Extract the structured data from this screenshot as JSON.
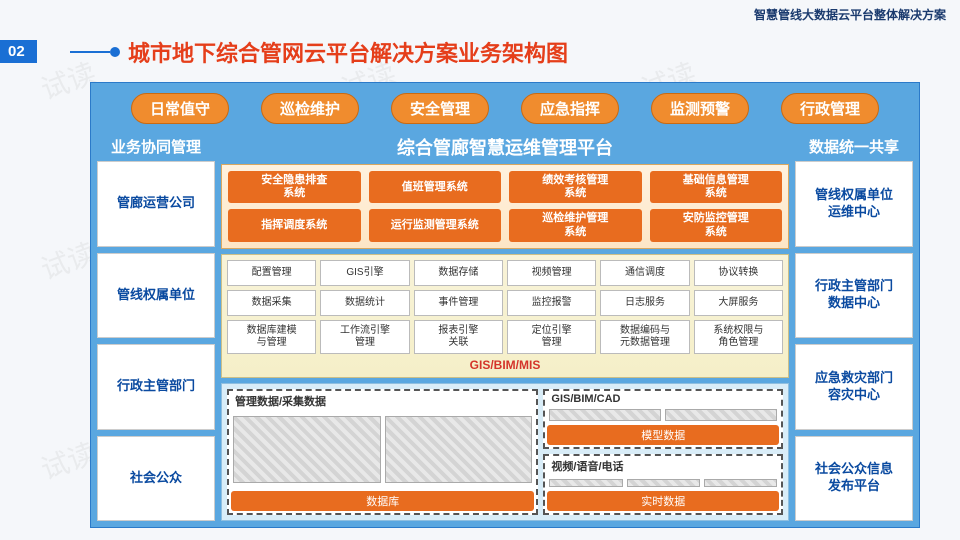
{
  "header": {
    "right_text": "智慧管线大数据云平台整体解决方案",
    "badge": "02",
    "title": "城市地下综合管网云平台解决方案业务架构图"
  },
  "colors": {
    "accent_blue": "#1a6fd4",
    "title_red": "#e53e1a",
    "pill_orange": "#f08c2e",
    "sys_orange": "#e86c1f",
    "diagram_bg": "#5aa7e0",
    "gis_red": "#d4342a"
  },
  "top_pills": [
    "日常值守",
    "巡检维护",
    "安全管理",
    "应急指挥",
    "监测预警",
    "行政管理"
  ],
  "left_col": {
    "header": "业务协同管理",
    "items": [
      "管廊运营公司",
      "管线权属单位",
      "行政主管部门",
      "社会公众"
    ]
  },
  "right_col": {
    "header": "数据统一共享",
    "items": [
      "管线权属单位\n运维中心",
      "行政主管部门\n数据中心",
      "应急救灾部门\n容灾中心",
      "社会公众信息\n发布平台"
    ]
  },
  "center": {
    "title": "综合管廊智慧运维管理平台",
    "systems_row1": [
      "安全隐患排查\n系统",
      "值班管理系统",
      "绩效考核管理\n系统",
      "基础信息管理\n系统"
    ],
    "systems_row2": [
      "指挥调度系统",
      "运行监测管理系统",
      "巡检维护管理\n系统",
      "安防监控管理\n系统"
    ],
    "modules": [
      "配置管理",
      "GIS引擎",
      "数据存储",
      "视频管理",
      "通信调度",
      "协议转换",
      "数据采集",
      "数据统计",
      "事件管理",
      "监控报警",
      "日志服务",
      "大屏服务",
      "数据库建模\n与管理",
      "工作流引擎\n管理",
      "报表引擎\n关联",
      "定位引擎\n管理",
      "数据编码与\n元数据管理",
      "系统权限与\n角色管理"
    ],
    "gis_label": "GIS/BIM/MIS"
  },
  "bottom": {
    "panel1": {
      "title": "GIS/BIM/CAD",
      "footer": "模型数据"
    },
    "panel2": {
      "title": "管理数据/采集数据",
      "footer": "数据库"
    },
    "panel3": {
      "title": "视频/语音/电话",
      "footer": "实时数据"
    }
  },
  "watermark": "试读"
}
